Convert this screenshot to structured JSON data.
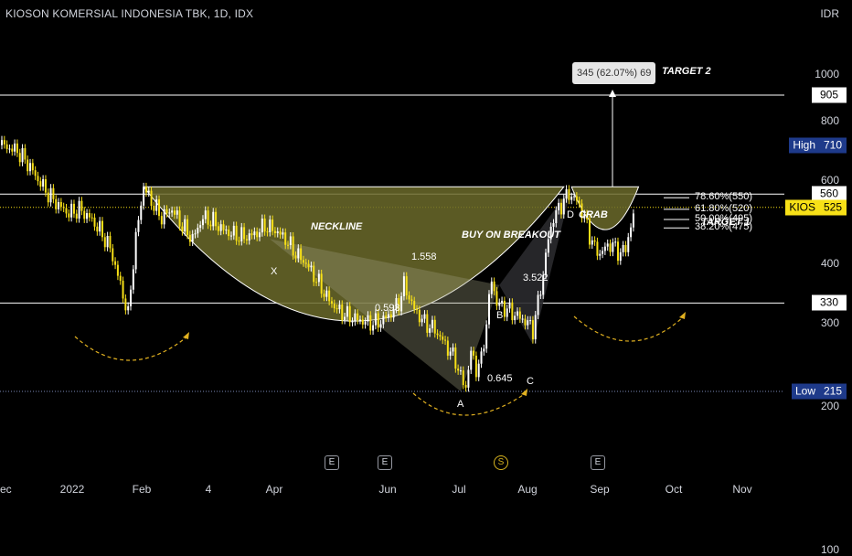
{
  "header": {
    "title": "KIOSON KOMERSIAL INDONESIA TBK, 1D, IDX",
    "currency": "IDR"
  },
  "colors": {
    "background": "#000000",
    "up": "#ffffff",
    "down": "#f7e017",
    "pattern_fill": "#6b6a2a",
    "accent": "#d6b31f"
  },
  "chart_data": {
    "type": "candlestick",
    "symbol": "KIOS",
    "timeframe": "1D",
    "exchange": "IDX",
    "yscale": "log",
    "yticks": [
      "1000",
      "800",
      "600",
      "400",
      "300",
      "200",
      "100"
    ],
    "xticks": [
      "Dec",
      "2022",
      "Feb",
      "4",
      "Apr",
      "Jun",
      "Jul",
      "Aug",
      "Sep",
      "Oct",
      "Nov"
    ],
    "ohlc_close_path": [
      [
        0,
        710
      ],
      [
        6,
        690
      ],
      [
        10,
        650
      ],
      [
        14,
        600
      ],
      [
        18,
        560
      ],
      [
        22,
        530
      ],
      [
        26,
        510
      ],
      [
        30,
        520
      ],
      [
        34,
        500
      ],
      [
        38,
        470
      ],
      [
        42,
        430
      ],
      [
        46,
        360
      ],
      [
        49,
        310
      ],
      [
        52,
        450
      ],
      [
        55,
        580
      ],
      [
        58,
        540
      ],
      [
        62,
        500
      ],
      [
        66,
        520
      ],
      [
        70,
        480
      ],
      [
        74,
        450
      ],
      [
        78,
        500
      ],
      [
        82,
        490
      ],
      [
        86,
        470
      ],
      [
        90,
        460
      ],
      [
        94,
        455
      ],
      [
        98,
        460
      ],
      [
        102,
        480
      ],
      [
        106,
        470
      ],
      [
        110,
        450
      ],
      [
        114,
        420
      ],
      [
        118,
        400
      ],
      [
        122,
        370
      ],
      [
        126,
        340
      ],
      [
        130,
        320
      ],
      [
        134,
        310
      ],
      [
        138,
        305
      ],
      [
        142,
        300
      ],
      [
        146,
        300
      ],
      [
        150,
        310
      ],
      [
        154,
        330
      ],
      [
        156,
        360
      ],
      [
        160,
        320
      ],
      [
        164,
        300
      ],
      [
        168,
        290
      ],
      [
        172,
        270
      ],
      [
        176,
        250
      ],
      [
        178,
        230
      ],
      [
        180,
        220
      ],
      [
        182,
        260
      ],
      [
        184,
        240
      ],
      [
        186,
        250
      ],
      [
        188,
        300
      ],
      [
        190,
        370
      ],
      [
        192,
        330
      ],
      [
        196,
        320
      ],
      [
        200,
        310
      ],
      [
        204,
        300
      ],
      [
        206,
        290
      ],
      [
        208,
        330
      ],
      [
        210,
        380
      ],
      [
        212,
        450
      ],
      [
        214,
        500
      ],
      [
        216,
        520
      ],
      [
        218,
        545
      ],
      [
        220,
        560
      ],
      [
        222,
        550
      ],
      [
        224,
        530
      ],
      [
        226,
        500
      ],
      [
        228,
        460
      ],
      [
        230,
        430
      ],
      [
        232,
        420
      ],
      [
        234,
        430
      ],
      [
        236,
        440
      ],
      [
        238,
        430
      ],
      [
        240,
        420
      ],
      [
        242,
        430
      ],
      [
        244,
        480
      ],
      [
        246,
        525
      ]
    ],
    "levels": [
      {
        "price": 905,
        "label": "905"
      },
      {
        "price": 710,
        "label": "High",
        "value": "710"
      },
      {
        "price": 560,
        "label": "560"
      },
      {
        "price": 525,
        "label": "KIOS",
        "value": "525"
      },
      {
        "price": 330,
        "label": "330"
      },
      {
        "price": 215,
        "label": "Low",
        "value": "215"
      }
    ],
    "pattern_labels": {
      "X": "X",
      "A": "A",
      "B": "B",
      "C": "C",
      "D": "D",
      "xb": "0.593",
      "ac": "0.645",
      "bd": "3.522",
      "xd": "1.558",
      "crab": "CRAB",
      "neckline": "NECKLINE",
      "buy": "BUY ON BREAKOUT",
      "target1": "TARGET 1",
      "target2": "TARGET 2"
    },
    "fibs": [
      "78.60%(550)",
      "61.80%(520)",
      "50.00%(495)",
      "38.20%(475)"
    ],
    "measure": "345 (62.07%) 69"
  },
  "events": [
    {
      "kind": "E",
      "label": "E"
    },
    {
      "kind": "E",
      "label": "E"
    },
    {
      "kind": "S",
      "label": "S"
    },
    {
      "kind": "E",
      "label": "E"
    }
  ]
}
